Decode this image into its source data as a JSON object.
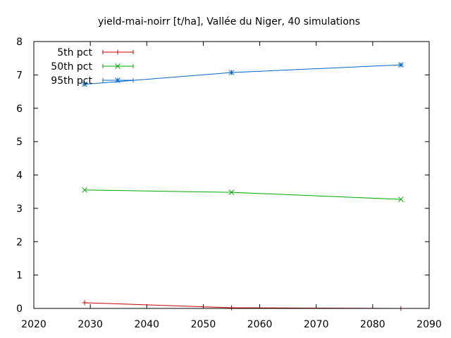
{
  "chart_data": {
    "type": "line",
    "title": "yield-mai-noirr [t/ha], Vallée du Niger, 40 simulations",
    "xlabel": "",
    "ylabel": "",
    "xlim": [
      2020,
      2090
    ],
    "ylim": [
      0,
      8
    ],
    "x_ticks": [
      "2020",
      "2030",
      "2040",
      "2050",
      "2060",
      "2070",
      "2080",
      "2090"
    ],
    "y_ticks": [
      "0",
      "1",
      "2",
      "3",
      "4",
      "5",
      "6",
      "7",
      "8"
    ],
    "x": [
      2029,
      2055,
      2085
    ],
    "legend_position": "top-left",
    "grid": false,
    "series": [
      {
        "name": "5th pct",
        "color": "#cc0000",
        "marker": "plus",
        "values": [
          0.17,
          0.02,
          0.0
        ]
      },
      {
        "name": "50th pct",
        "color": "#00aa00",
        "marker": "cross",
        "values": [
          3.55,
          3.48,
          3.27
        ]
      },
      {
        "name": "95th pct",
        "color": "#0066cc",
        "marker": "star",
        "values": [
          6.72,
          7.07,
          7.3
        ]
      }
    ]
  }
}
